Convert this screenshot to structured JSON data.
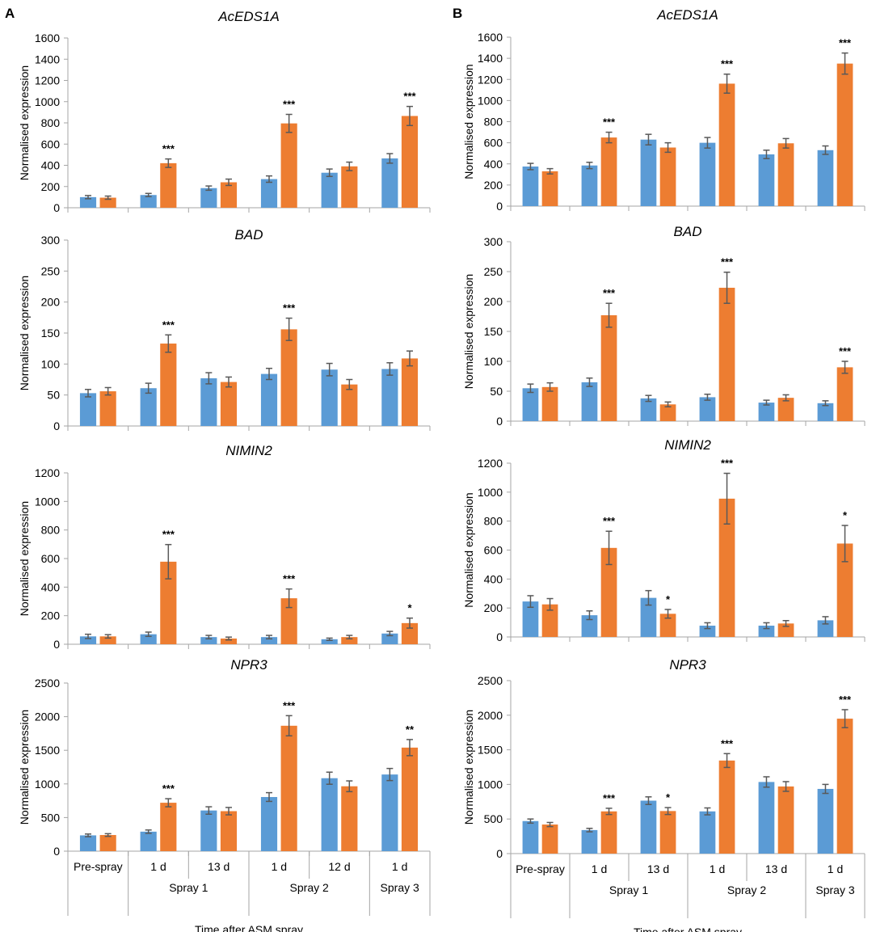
{
  "figure": {
    "panel_labels": [
      "A",
      "B"
    ],
    "axis_label": "Time after ASM spray",
    "y_axis_label": "Normalised expression"
  },
  "colors": {
    "blue": "#5b9bd5",
    "orange": "#ed7d31",
    "error": "#595959",
    "axis": "#a6a6a6",
    "text": "#000000"
  },
  "x_axis": {
    "row1": [
      "Pre-spray",
      "1 d",
      "13 d",
      "1 d",
      "12 d",
      "1 d"
    ],
    "row1_B": [
      "Pre-spray",
      "1 d",
      "13 d",
      "1 d",
      "13 d",
      "1 d"
    ],
    "row2": [
      "Spray 1",
      "Spray 2",
      "Spray 3"
    ]
  },
  "chart_data": [
    {
      "panel": "A",
      "type": "bar",
      "title": "AcEDS1A",
      "ylabel": "Normalised expression",
      "ylim": [
        0,
        1600
      ],
      "yticks": [
        0,
        200,
        400,
        600,
        800,
        1000,
        1200,
        1400,
        1600
      ],
      "categories": [
        "Pre-spray",
        "1 d",
        "13 d",
        "1 d",
        "12 d",
        "1 d"
      ],
      "series": [
        {
          "name": "blue",
          "values": [
            100,
            120,
            185,
            270,
            330,
            465
          ],
          "errors": [
            15,
            15,
            20,
            30,
            35,
            45
          ]
        },
        {
          "name": "orange",
          "values": [
            95,
            420,
            240,
            795,
            390,
            865
          ],
          "errors": [
            15,
            40,
            30,
            85,
            40,
            90
          ]
        }
      ],
      "significance": [
        "",
        "***",
        "",
        "***",
        "",
        "***"
      ]
    },
    {
      "panel": "A",
      "type": "bar",
      "title": "BAD",
      "ylabel": "Normalised expression",
      "ylim": [
        0,
        300
      ],
      "yticks": [
        0,
        50,
        100,
        150,
        200,
        250,
        300
      ],
      "categories": [
        "Pre-spray",
        "1 d",
        "13 d",
        "1 d",
        "12 d",
        "1 d"
      ],
      "series": [
        {
          "name": "blue",
          "values": [
            53,
            61,
            77,
            84,
            91,
            92
          ],
          "errors": [
            6,
            8,
            9,
            9,
            10,
            10
          ]
        },
        {
          "name": "orange",
          "values": [
            56,
            133,
            71,
            156,
            67,
            109
          ],
          "errors": [
            6,
            14,
            8,
            18,
            8,
            12
          ]
        }
      ],
      "significance": [
        "",
        "***",
        "",
        "***",
        "",
        ""
      ]
    },
    {
      "panel": "A",
      "type": "bar",
      "title": "NIMIN2",
      "ylabel": "Normalised expression",
      "ylim": [
        0,
        1200
      ],
      "yticks": [
        0,
        200,
        400,
        600,
        800,
        1000,
        1200
      ],
      "categories": [
        "Pre-spray",
        "1 d",
        "13 d",
        "1 d",
        "12 d",
        "1 d"
      ],
      "series": [
        {
          "name": "blue",
          "values": [
            55,
            70,
            50,
            50,
            35,
            75
          ],
          "errors": [
            15,
            15,
            12,
            12,
            8,
            15
          ]
        },
        {
          "name": "orange",
          "values": [
            55,
            578,
            40,
            322,
            50,
            148
          ],
          "errors": [
            12,
            120,
            10,
            65,
            12,
            35
          ]
        }
      ],
      "significance": [
        "",
        "***",
        "",
        "***",
        "",
        "*"
      ]
    },
    {
      "panel": "A",
      "type": "bar",
      "title": "NPR3",
      "ylabel": "Normalised expression",
      "ylim": [
        0,
        2500
      ],
      "yticks": [
        0,
        500,
        1000,
        1500,
        2000,
        2500
      ],
      "categories": [
        "Pre-spray",
        "1 d",
        "13 d",
        "1 d",
        "12 d",
        "1 d"
      ],
      "series": [
        {
          "name": "blue",
          "values": [
            235,
            290,
            605,
            805,
            1085,
            1140
          ],
          "errors": [
            20,
            25,
            55,
            65,
            90,
            90
          ]
        },
        {
          "name": "orange",
          "values": [
            240,
            720,
            595,
            1865,
            965,
            1540
          ],
          "errors": [
            20,
            60,
            55,
            150,
            80,
            120
          ]
        }
      ],
      "significance": [
        "",
        "***",
        "",
        "***",
        "",
        "**"
      ]
    },
    {
      "panel": "B",
      "type": "bar",
      "title": "AcEDS1A",
      "ylabel": "Normalised expression",
      "ylim": [
        0,
        1600
      ],
      "yticks": [
        0,
        200,
        400,
        600,
        800,
        1000,
        1200,
        1400,
        1600
      ],
      "categories": [
        "Pre-spray",
        "1 d",
        "13 d",
        "1 d",
        "13 d",
        "1 d"
      ],
      "series": [
        {
          "name": "blue",
          "values": [
            375,
            385,
            630,
            600,
            490,
            530
          ],
          "errors": [
            30,
            30,
            50,
            50,
            40,
            40
          ]
        },
        {
          "name": "orange",
          "values": [
            330,
            650,
            555,
            1160,
            595,
            1350
          ],
          "errors": [
            25,
            50,
            45,
            90,
            45,
            100
          ]
        }
      ],
      "significance": [
        "",
        "***",
        "",
        "***",
        "",
        "***"
      ]
    },
    {
      "panel": "B",
      "type": "bar",
      "title": "BAD",
      "ylabel": "Normalised expression",
      "ylim": [
        0,
        300
      ],
      "yticks": [
        0,
        50,
        100,
        150,
        200,
        250,
        300
      ],
      "categories": [
        "Pre-spray",
        "1 d",
        "13 d",
        "1 d",
        "13 d",
        "1 d"
      ],
      "series": [
        {
          "name": "blue",
          "values": [
            55,
            65,
            38,
            40,
            31,
            30
          ],
          "errors": [
            7,
            7,
            5,
            5,
            4,
            4
          ]
        },
        {
          "name": "orange",
          "values": [
            57,
            177,
            28,
            223,
            39,
            90
          ],
          "errors": [
            7,
            20,
            4,
            26,
            5,
            10
          ]
        }
      ],
      "significance": [
        "",
        "***",
        "",
        "***",
        "",
        "***"
      ]
    },
    {
      "panel": "B",
      "type": "bar",
      "title": "NIMIN2",
      "ylabel": "Normalised expression",
      "ylim": [
        0,
        1200
      ],
      "yticks": [
        0,
        200,
        400,
        600,
        800,
        1000,
        1200
      ],
      "categories": [
        "Pre-spray",
        "1 d",
        "13 d",
        "1 d",
        "13 d",
        "1 d"
      ],
      "series": [
        {
          "name": "blue",
          "values": [
            245,
            150,
            270,
            78,
            78,
            115
          ],
          "errors": [
            40,
            30,
            50,
            20,
            20,
            25
          ]
        },
        {
          "name": "orange",
          "values": [
            225,
            615,
            160,
            955,
            93,
            645
          ],
          "errors": [
            40,
            115,
            30,
            175,
            20,
            125
          ]
        }
      ],
      "significance": [
        "",
        "***",
        "*",
        "***",
        "",
        "*"
      ]
    },
    {
      "panel": "B",
      "type": "bar",
      "title": "NPR3",
      "ylabel": "Normalised expression",
      "ylim": [
        0,
        2500
      ],
      "yticks": [
        0,
        500,
        1000,
        1500,
        2000,
        2500
      ],
      "categories": [
        "Pre-spray",
        "1 d",
        "13 d",
        "1 d",
        "13 d",
        "1 d"
      ],
      "series": [
        {
          "name": "blue",
          "values": [
            470,
            340,
            765,
            610,
            1035,
            935
          ],
          "errors": [
            30,
            25,
            55,
            50,
            75,
            65
          ]
        },
        {
          "name": "orange",
          "values": [
            420,
            610,
            615,
            1345,
            970,
            1950
          ],
          "errors": [
            30,
            45,
            50,
            100,
            70,
            130
          ]
        }
      ],
      "significance": [
        "",
        "***",
        "*",
        "***",
        "",
        "***"
      ]
    }
  ]
}
